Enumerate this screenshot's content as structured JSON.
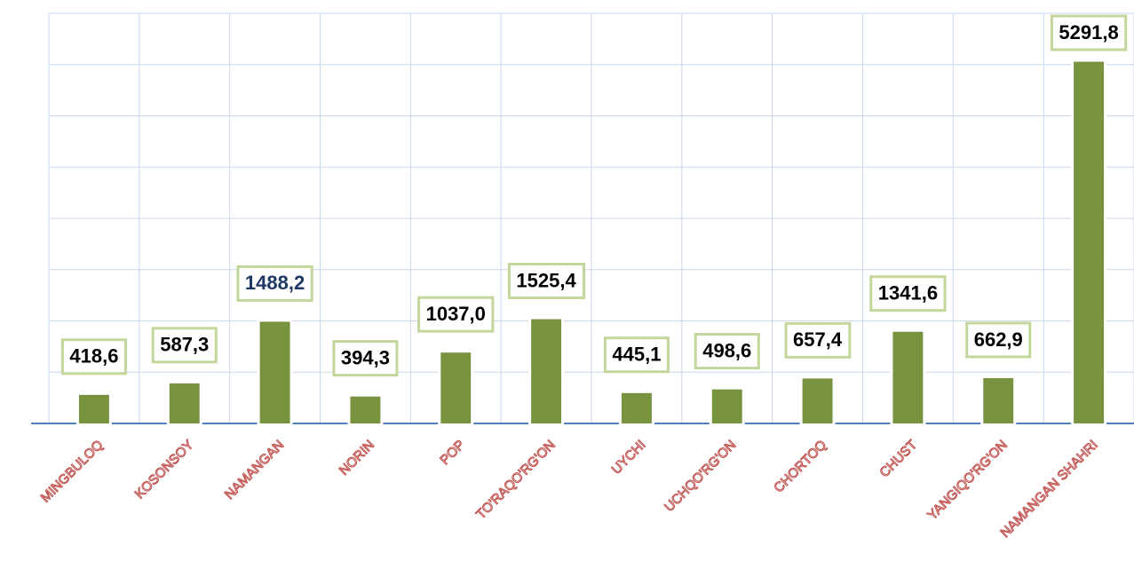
{
  "chart_data": {
    "type": "bar",
    "categories": [
      "MINGBULOQ",
      "KOSONSOY",
      "NAMANGAN",
      "NORIN",
      "POP",
      "TO'RAQO'RG'ON",
      "UYCHI",
      "UCHQO'RG'ON",
      "CHORTOQ",
      "CHUST",
      "YANGIQO'RG'ON",
      "NAMANGAN SHAHRI"
    ],
    "values": [
      418.6,
      587.3,
      1488.2,
      394.3,
      1037.0,
      1525.4,
      445.1,
      498.6,
      657.4,
      1341.6,
      662.9,
      5291.8
    ],
    "value_labels": [
      "418,6",
      "587,3",
      "1488,2",
      "394,3",
      "1037,0",
      "1525,4",
      "445,1",
      "498,6",
      "657,4",
      "1341,6",
      "662,9",
      "5291,8"
    ],
    "value_label_colors": [
      "#000000",
      "#000000",
      "#1f3864",
      "#000000",
      "#000000",
      "#000000",
      "#000000",
      "#000000",
      "#000000",
      "#000000",
      "#000000",
      "#000000"
    ],
    "color": "#77933c",
    "ylim": [
      0,
      6000
    ],
    "yticks": [
      0,
      750,
      1500,
      2250,
      3000,
      3750,
      4500,
      5250,
      6000
    ],
    "grid": true
  }
}
